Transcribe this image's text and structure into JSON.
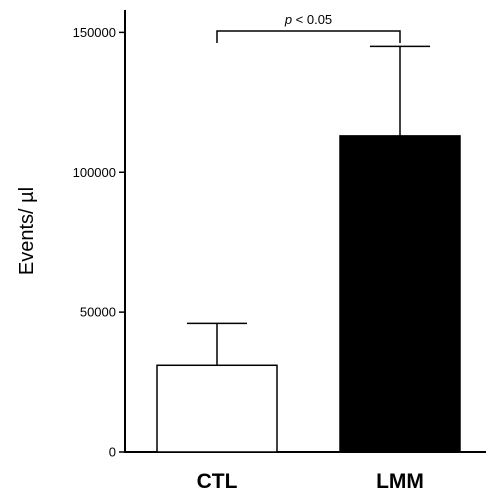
{
  "chart_data": {
    "type": "bar",
    "title": "",
    "xlabel": "",
    "ylabel": "Events/ µl",
    "categories": [
      "CTL",
      "LMM"
    ],
    "values": [
      31000,
      113000
    ],
    "error_upper": [
      46000,
      145000
    ],
    "bar_colors": [
      "#ffffff",
      "#000000"
    ],
    "ylim": [
      0,
      158000
    ],
    "yticks": [
      0,
      50000,
      100000,
      150000
    ],
    "ytick_labels": [
      "0",
      "50000",
      "100000",
      "150000"
    ],
    "grid": false,
    "legend": "none",
    "significance": {
      "between": [
        "CTL",
        "LMM"
      ],
      "label_italic": "p",
      "label_rest": " < 0.05"
    }
  }
}
